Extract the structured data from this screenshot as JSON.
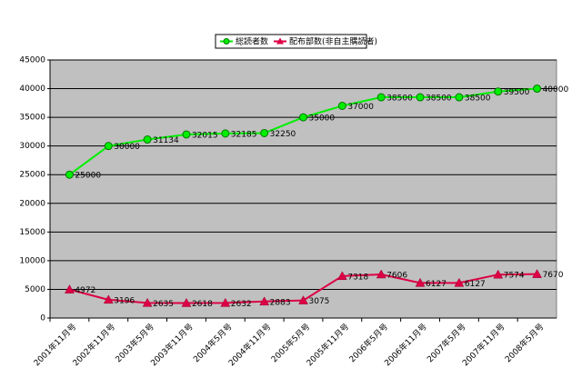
{
  "chart_data": {
    "type": "line",
    "categories": [
      "2001年11月号",
      "2002年11月号",
      "2003年5月号",
      "2003年11月号",
      "2004年5月号",
      "2004年11月号",
      "2005年5月号",
      "2005年11月号",
      "2006年5月号",
      "2006年11月号",
      "2007年5月号",
      "2007年11月号",
      "2008年5月号"
    ],
    "series": [
      {
        "name": "総読者数",
        "color": "#00ee00",
        "marker": "circle",
        "values": [
          25000,
          30000,
          31134,
          32015,
          32185,
          32250,
          35000,
          37000,
          38500,
          38500,
          38500,
          39500,
          40000
        ]
      },
      {
        "name": "配布部数(非自主購読者)",
        "color": "#dd0044",
        "marker": "triangle",
        "values": [
          4972,
          3196,
          2635,
          2618,
          2632,
          2883,
          3075,
          7318,
          7606,
          6127,
          6127,
          7574,
          7670
        ]
      }
    ],
    "ylim": [
      0,
      45000
    ],
    "yticks": [
      0,
      5000,
      10000,
      15000,
      20000,
      25000,
      30000,
      35000,
      40000,
      45000
    ],
    "grid": true,
    "legend": "top"
  }
}
